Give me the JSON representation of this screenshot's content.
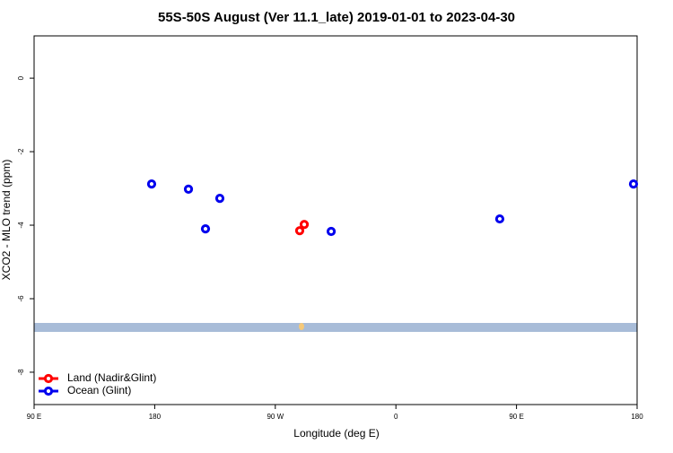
{
  "chart_data": {
    "type": "scatter",
    "title": "55S-50S August (Ver 11.1_late)   2019-01-01 to 2023-04-30",
    "x_label": "Longitude (deg E)",
    "y_label": "XCO2 - MLO trend (ppm)",
    "xlim": [
      90,
      540
    ],
    "xticks": [
      {
        "value": 90,
        "label": "90 E"
      },
      {
        "value": 180,
        "label": "180"
      },
      {
        "value": 270,
        "label": "90 W"
      },
      {
        "value": 360,
        "label": "0"
      },
      {
        "value": 450,
        "label": "90 E"
      },
      {
        "value": 540,
        "label": "180"
      }
    ],
    "ylim": [
      -8.88,
      1.15
    ],
    "yticks": [
      0,
      -2,
      -4,
      -6,
      -8
    ],
    "legend": "bottom-left",
    "series": [
      {
        "name": "Land (Nadir&Glint)",
        "color": "#ff0000",
        "x": [
          288.2,
          291.6
        ],
        "values": [
          -4.15,
          -3.98
        ]
      },
      {
        "name": "Ocean (Glint)",
        "color": "#0000ee",
        "x": [
          177.7,
          205.2,
          217.9,
          228.6,
          311.7,
          437.5,
          537.3
        ],
        "values": [
          -2.88,
          -3.02,
          -4.1,
          -3.27,
          -4.17,
          -3.83,
          -2.88
        ]
      }
    ]
  }
}
